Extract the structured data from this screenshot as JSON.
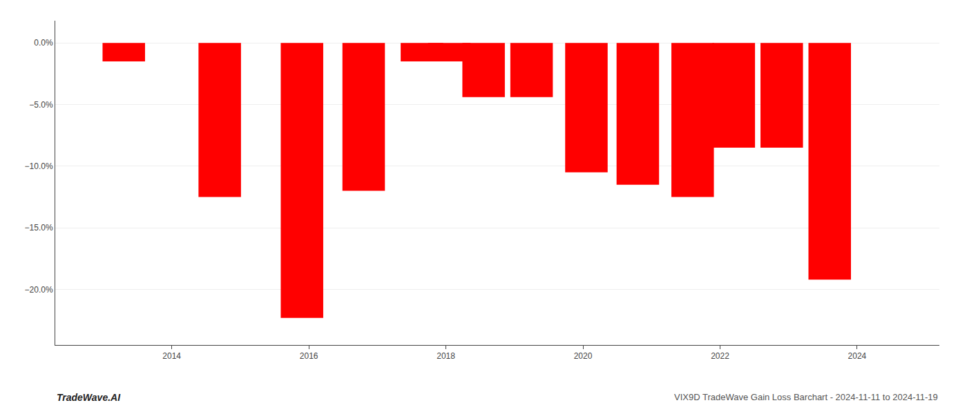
{
  "chart_data": {
    "type": "bar",
    "x": [
      2013.3,
      2014.7,
      2015.9,
      2016.8,
      2017.65,
      2018.05,
      2018.55,
      2019.25,
      2020.05,
      2020.8,
      2021.6,
      2022.2,
      2022.9,
      2023.6
    ],
    "values": [
      -1.5,
      -12.5,
      -22.3,
      -12.0,
      -1.5,
      -1.5,
      -4.4,
      -4.4,
      -10.5,
      -11.5,
      -12.5,
      -8.5,
      -8.5,
      -19.2
    ],
    "color": "#ff0000",
    "xlim": [
      2012.3,
      2025.2
    ],
    "xticks": [
      2014,
      2016,
      2018,
      2020,
      2022,
      2024
    ],
    "ylim": [
      -24.5,
      1.8
    ],
    "yticks": [
      {
        "value": 0.0,
        "label": "0.0%"
      },
      {
        "value": -5.0,
        "label": "−5.0%"
      },
      {
        "value": -10.0,
        "label": "−10.0%"
      },
      {
        "value": -15.0,
        "label": "−15.0%"
      },
      {
        "value": -20.0,
        "label": "−20.0%"
      }
    ],
    "grid": true,
    "annotations": [
      "TradeWave.AI",
      "VIX9D TradeWave Gain Loss Barchart - 2024-11-11 to 2024-11-19"
    ]
  }
}
